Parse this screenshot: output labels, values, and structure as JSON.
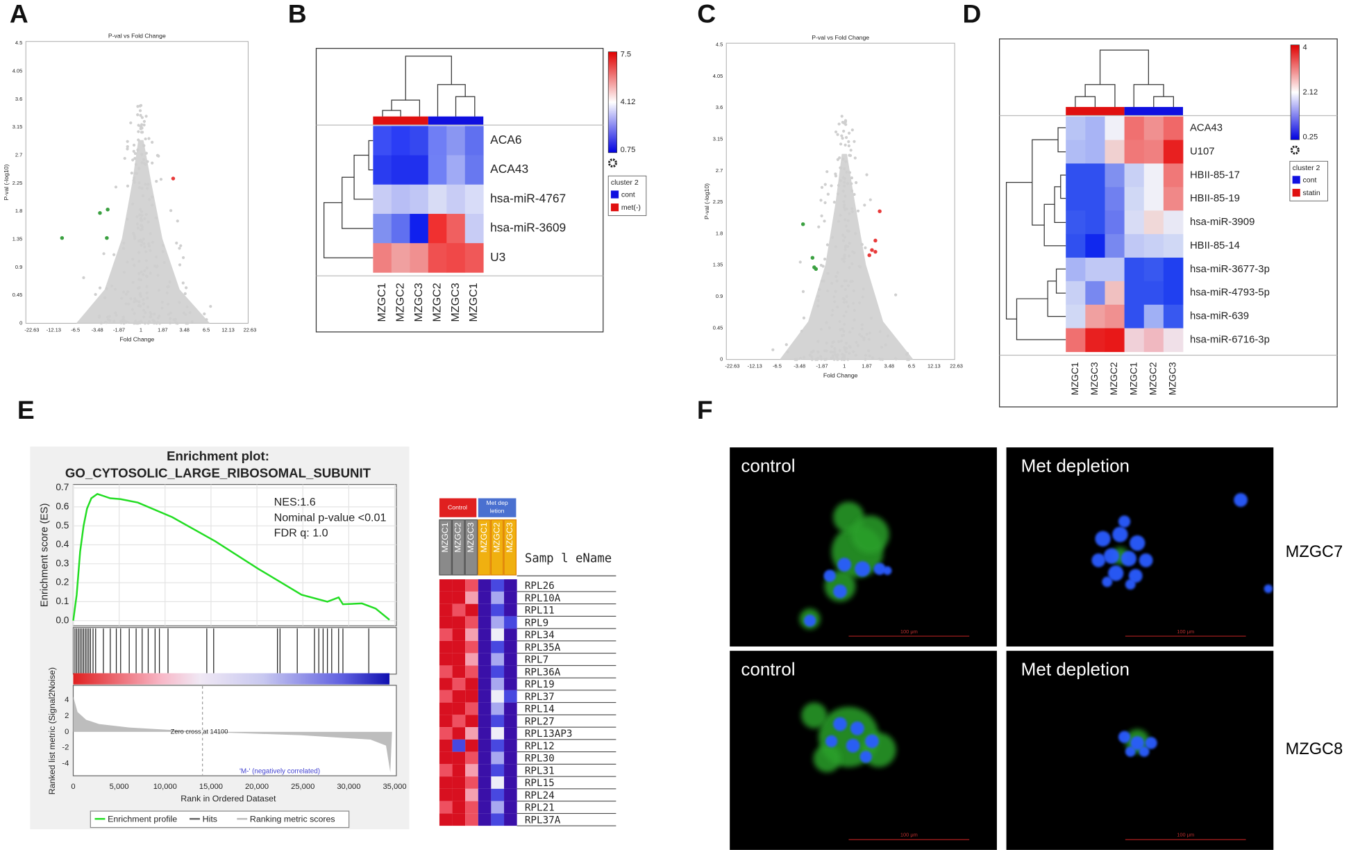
{
  "panels": {
    "a": {
      "label": "A",
      "title": "P-val vs Fold Change",
      "y_label": "P-val (-log10)",
      "x_label": "Fold Change",
      "y_ticks": [
        "0",
        "0.45",
        "0.9",
        "1.35",
        "1.8",
        "2.25",
        "2.7",
        "3.15",
        "3.6",
        "4.05",
        "4.5"
      ],
      "x_ticks": [
        "-22.63",
        "-12.13",
        "-6.5",
        "-3.48",
        "-1.87",
        "1",
        "1.87",
        "3.48",
        "6.5",
        "12.13",
        "22.63"
      ]
    },
    "b": {
      "label": "B",
      "columns": [
        "MZGC1",
        "MZGC2",
        "MZGC3",
        "MZGC2",
        "MZGC3",
        "MZGC1"
      ],
      "rows": [
        "ACA6",
        "ACA43",
        "hsa-miR-4767",
        "hsa-miR-3609",
        "U3"
      ],
      "cells": [
        [
          "#3b4ef5",
          "#2b3df5",
          "#3548f0",
          "#6f7ef5",
          "#8a96f2",
          "#6070f0"
        ],
        [
          "#2a3cf0",
          "#2030ee",
          "#2030ee",
          "#7080f5",
          "#a0aaf5",
          "#6878f0"
        ],
        [
          "#c8ccf5",
          "#b8bef5",
          "#c0c6f5",
          "#d8dcf5",
          "#c8ccf5",
          "#d8dcf8"
        ],
        [
          "#8090f0",
          "#6070f0",
          "#1020ee",
          "#f03030",
          "#f06060",
          "#c8ccf5"
        ],
        [
          "#f08080",
          "#f0a0a0",
          "#f09090",
          "#f05050",
          "#f04848",
          "#f05858"
        ]
      ],
      "scale_ticks": [
        "7.5",
        "4.12",
        "0.75"
      ],
      "legend_title": "cluster 2",
      "groups": [
        {
          "name": "cont",
          "color": "#1010e0"
        },
        {
          "name": "met(-)",
          "color": "#e01010"
        }
      ]
    },
    "c": {
      "label": "C",
      "title": "P-val vs Fold Change",
      "y_label": "P-val (-log10)",
      "x_label": "Fold Change",
      "y_ticks": [
        "0",
        "0.45",
        "0.9",
        "1.35",
        "1.8",
        "2.25",
        "2.7",
        "3.15",
        "3.6",
        "4.05",
        "4.5"
      ],
      "x_ticks": [
        "-22.63",
        "-12.13",
        "-6.5",
        "-3.48",
        "-1.87",
        "1",
        "1.87",
        "3.48",
        "6.5",
        "12.13",
        "22.63"
      ]
    },
    "d": {
      "label": "D",
      "columns": [
        "MZGC1",
        "MZGC3",
        "MZGC2",
        "MZGC1",
        "MZGC2",
        "MZGC3"
      ],
      "rows": [
        "ACA43",
        "U107",
        "HBII-85-17",
        "HBII-85-19",
        "hsa-miR-3909",
        "HBII-85-14",
        "hsa-miR-3677-3p",
        "hsa-miR-4793-5p",
        "hsa-miR-639",
        "hsa-miR-6716-3p"
      ],
      "cells": [
        [
          "#b8c4f5",
          "#a8b4f5",
          "#f0f0f8",
          "#f07070",
          "#f09090",
          "#f06868"
        ],
        [
          "#b0bcf5",
          "#a8b4f5",
          "#f0d0d0",
          "#f07878",
          "#f08080",
          "#e82020"
        ],
        [
          "#3050f0",
          "#3050f0",
          "#8090f0",
          "#c8d0f5",
          "#f0f0f8",
          "#f07878"
        ],
        [
          "#3050f0",
          "#3050f0",
          "#7080f0",
          "#d0d8f5",
          "#f0f0f8",
          "#f08888"
        ],
        [
          "#3858f0",
          "#3050f0",
          "#6878f0",
          "#d8dcf5",
          "#f0d8d8",
          "#e8e8f5"
        ],
        [
          "#3050f0",
          "#1028ee",
          "#7888f0",
          "#c0c8f5",
          "#c8d0f5",
          "#d0d8f5"
        ],
        [
          "#a8b4f5",
          "#c0c8f5",
          "#c0c8f5",
          "#3050f0",
          "#3858f0",
          "#2040f0"
        ],
        [
          "#c8d0f5",
          "#7888f0",
          "#f0c0c0",
          "#3050f0",
          "#3050f0",
          "#2040f0"
        ],
        [
          "#d0d8f5",
          "#f0a0a0",
          "#f09090",
          "#3050f0",
          "#a0b0f5",
          "#3858f0"
        ],
        [
          "#f07070",
          "#e82020",
          "#e81818",
          "#f0d0d8",
          "#f0b8c0",
          "#f0e0e8"
        ]
      ],
      "scale_ticks": [
        "4",
        "2.12",
        "0.25"
      ],
      "legend_title": "cluster 2",
      "groups": [
        {
          "name": "cont",
          "color": "#1010e0"
        },
        {
          "name": "statin",
          "color": "#e01010"
        }
      ]
    },
    "e": {
      "label": "E",
      "title": [
        "Enrichment plot:",
        "GO_CYTOSOLIC_LARGE_RIBOSOMAL_SUBUNIT"
      ],
      "stats": [
        "NES:1.6",
        "Nominal p-value <0.01",
        "FDR q: 1.0"
      ],
      "y_label": "Enrichment score (ES)",
      "y_ticks": [
        "0.0",
        "0.1",
        "0.2",
        "0.3",
        "0.4",
        "0.5",
        "0.6",
        "0.7"
      ],
      "metric_label": "Ranked list metric (Signal2Noise)",
      "metric_ticks": [
        "4",
        "2",
        "0",
        "-2",
        "-4"
      ],
      "x_ticks": [
        "0",
        "5,000",
        "10,000",
        "15,000",
        "20,000",
        "25,000",
        "30,000",
        "35,000"
      ],
      "x_label": "Rank in Ordered Dataset",
      "pos_label": "'M+' (positively correlated)",
      "neg_label": "'M-' (negatively correlated)",
      "zero_cross": "Zero cross at 14100",
      "legend": [
        "Enrichment profile",
        "Hits",
        "Ranking metric scores"
      ],
      "heatmap": {
        "control": "Control",
        "met": [
          "Met dep",
          "letion"
        ],
        "columns": [
          "MZGC1",
          "MZGC2",
          "MZGC3",
          "MZGC1",
          "MZGC2",
          "MZGC3"
        ],
        "header": "Samp l eName",
        "rows": [
          "RPL26",
          "RPL10A",
          "RPL11",
          "RPL9",
          "RPL34",
          "RPL35A",
          "RPL7",
          "RPL36A",
          "RPL19",
          "RPL37",
          "RPL14",
          "RPL27",
          "RPL13AP3",
          "RPL12",
          "RPL30",
          "RPL31",
          "RPL15",
          "RPL24",
          "RPL21",
          "RPL37A"
        ],
        "palette": {
          "R": "#d81020",
          "r": "#ee5060",
          "p": "#f5a0b0",
          "w": "#eeeef8",
          "l": "#a8a8f0",
          "b": "#4848e0",
          "v": "#3a10a8"
        },
        "cells": [
          "RRrvbv",
          "RRpvlv",
          "RrRvbv",
          "RRrvlb",
          "rRpvwv",
          "RRrvbv",
          "RRpvlv",
          "rRrvbv",
          "RrRvlv",
          "rRRvwb",
          "RRrvlv",
          "RrRvbv",
          "rRpvwv",
          "RbRvbv",
          "RRrvlv",
          "rRpvbv",
          "RRrvwv",
          "RRpvbv",
          "rRrvlv",
          "RRrvbv"
        ]
      }
    },
    "f": {
      "label": "F",
      "captions": [
        "control",
        "Met depletion",
        "control",
        "Met depletion"
      ],
      "scale_bar": "100 μm",
      "rows": [
        "MZGC7",
        "MZGC8"
      ]
    }
  }
}
